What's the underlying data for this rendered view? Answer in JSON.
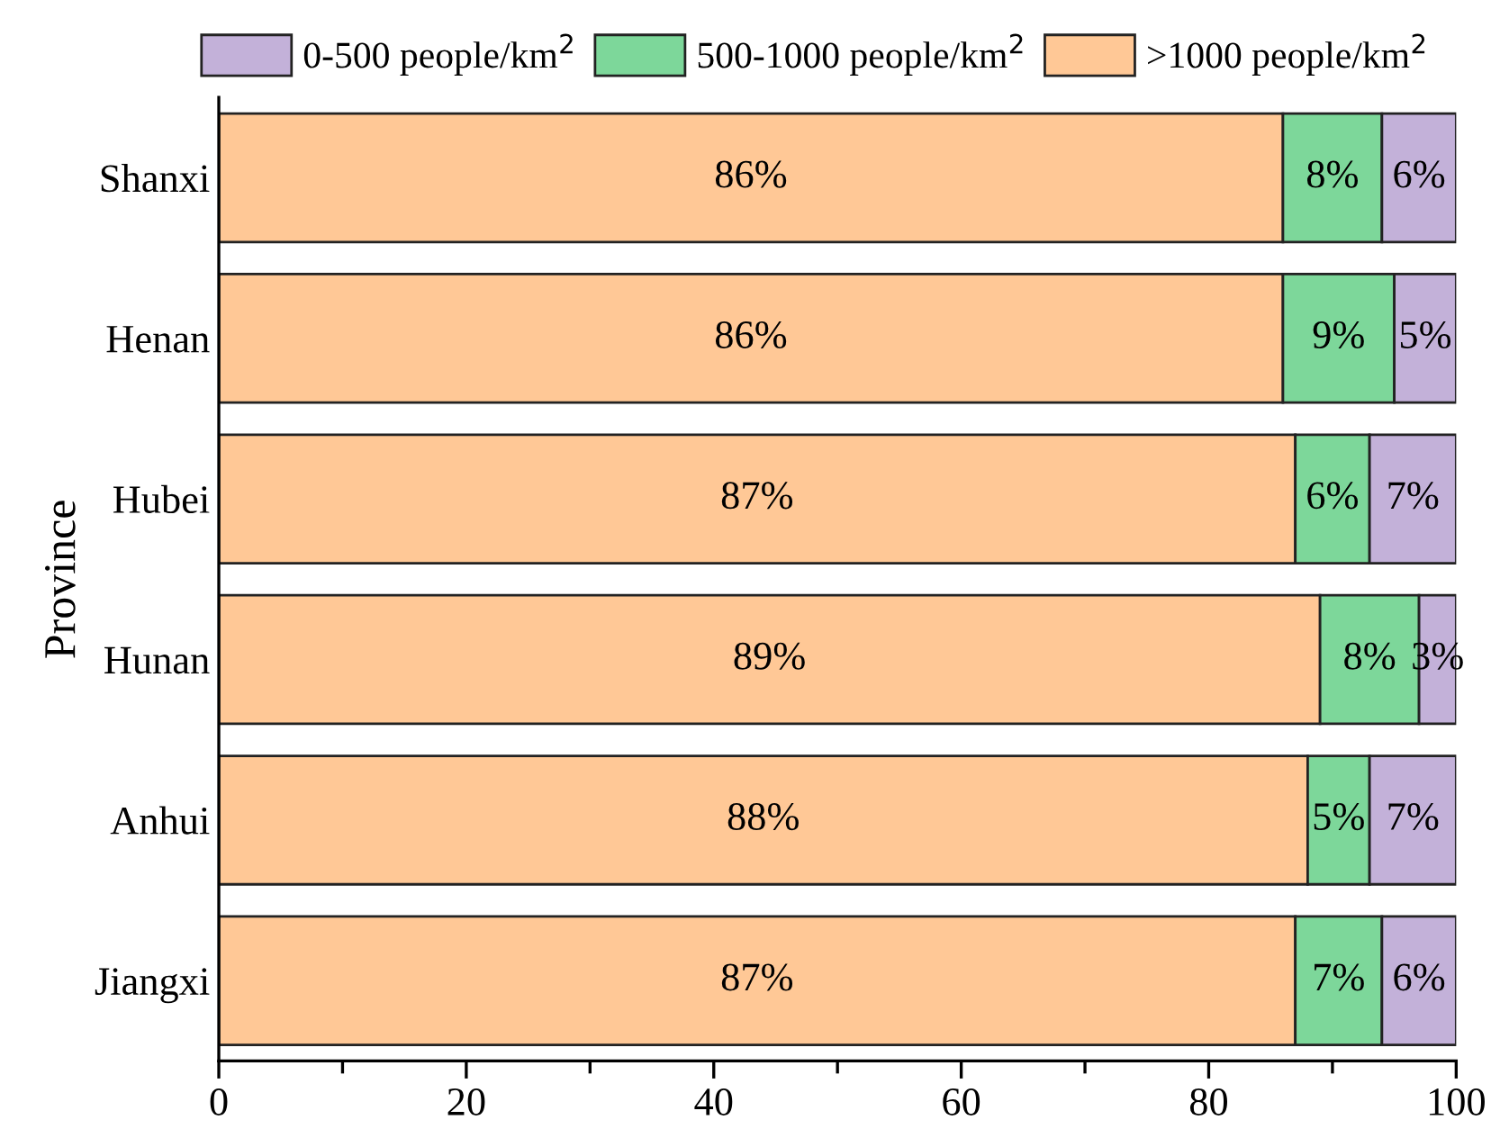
{
  "chart_data": {
    "type": "bar",
    "orientation": "horizontal",
    "stacked": true,
    "ylabel": "Province",
    "categories": [
      "Shanxi",
      "Henan",
      "Hubei",
      "Hunan",
      "Anhui",
      "Jiangxi"
    ],
    "series": [
      {
        "name": ">1000 people/km$^{2}$",
        "color": "#ffc896",
        "values": [
          86,
          86,
          87,
          89,
          88,
          87
        ],
        "value_labels": [
          "86%",
          "86%",
          "87%",
          "89%",
          "88%",
          "87%"
        ]
      },
      {
        "name": "500-1000 people/km$^{2}$",
        "color": "#7dd79a",
        "values": [
          8,
          9,
          6,
          8,
          5,
          7
        ],
        "value_labels": [
          "8%",
          "9%",
          "6%",
          "8%",
          "5%",
          "7%"
        ]
      },
      {
        "name": "0-500 people/km$^{2}$",
        "color": "#c3b1d9",
        "values": [
          6,
          5,
          7,
          3,
          7,
          6
        ],
        "value_labels": [
          "6%",
          "5%",
          "7%",
          "3%",
          "7%",
          "6%"
        ]
      }
    ],
    "xlim": [
      0,
      100
    ],
    "xticks": [
      0,
      20,
      40,
      60,
      80,
      100
    ],
    "grid": false,
    "legend": "top"
  }
}
